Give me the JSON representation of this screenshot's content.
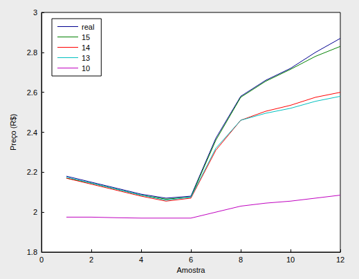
{
  "chart_data": {
    "type": "line",
    "x_label": "Amostra",
    "y_label": "Preço (R$)",
    "x": [
      1,
      2,
      3,
      4,
      5,
      6,
      7,
      8,
      9,
      10,
      11,
      12
    ],
    "series": [
      {
        "name": "real",
        "color": "#00008f",
        "values": [
          2.18,
          2.15,
          2.12,
          2.09,
          2.07,
          2.08,
          2.37,
          2.58,
          2.66,
          2.72,
          2.8,
          2.87
        ]
      },
      {
        "name": "15",
        "color": "#008000",
        "values": [
          2.17,
          2.145,
          2.115,
          2.085,
          2.065,
          2.075,
          2.36,
          2.575,
          2.655,
          2.715,
          2.78,
          2.83
        ]
      },
      {
        "name": "14",
        "color": "#ff0000",
        "values": [
          2.17,
          2.14,
          2.11,
          2.08,
          2.055,
          2.07,
          2.31,
          2.46,
          2.505,
          2.535,
          2.575,
          2.6
        ]
      },
      {
        "name": "13",
        "color": "#00bfbf",
        "values": [
          2.175,
          2.145,
          2.115,
          2.085,
          2.06,
          2.075,
          2.32,
          2.46,
          2.495,
          2.52,
          2.555,
          2.58
        ]
      },
      {
        "name": "10",
        "color": "#bf00bf",
        "values": [
          1.975,
          1.975,
          1.972,
          1.97,
          1.97,
          1.97,
          2.0,
          2.03,
          2.045,
          2.055,
          2.07,
          2.085
        ]
      }
    ],
    "xlim": [
      0,
      12
    ],
    "xticks": [
      0,
      2,
      4,
      6,
      8,
      10,
      12
    ],
    "ylim": [
      1.8,
      3
    ],
    "yticks": [
      1.8,
      2,
      2.2,
      2.4,
      2.6,
      2.8,
      3
    ],
    "grid": false,
    "legend": "upper left"
  }
}
